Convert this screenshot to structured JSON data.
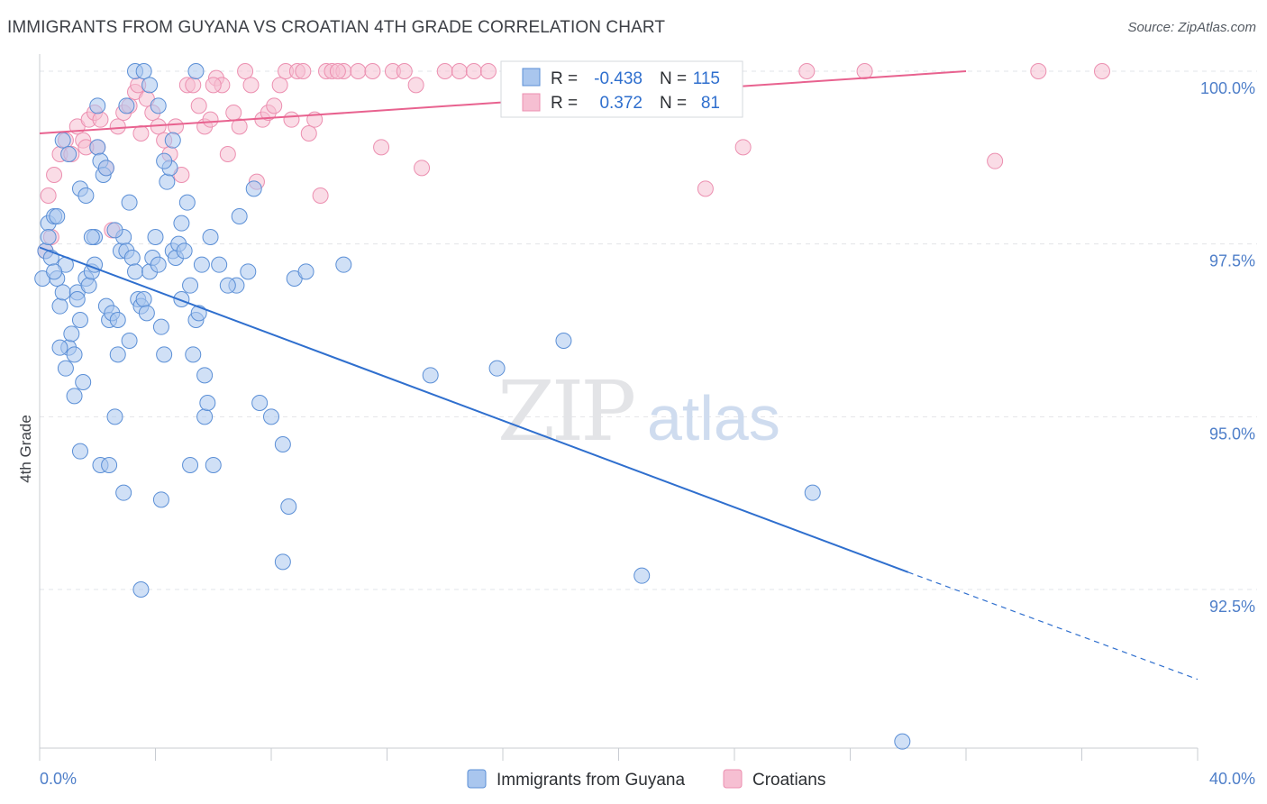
{
  "title": "IMMIGRANTS FROM GUYANA VS CROATIAN 4TH GRADE CORRELATION CHART",
  "source": "Source: ZipAtlas.com",
  "watermark": {
    "zip": "ZIP",
    "atlas": "atlas"
  },
  "colors": {
    "blue_fill": "#a9c6ee",
    "blue_stroke": "#5b8fd6",
    "blue_line": "#2f6fce",
    "pink_fill": "#f6bfd2",
    "pink_stroke": "#ec8fb0",
    "pink_line": "#e8628f",
    "grid": "#e2e4e8",
    "axis": "#c8ccd2",
    "tick_text": "#4f7fc9"
  },
  "legend_box": {
    "rows": [
      {
        "r_label": "R =",
        "r_value": "-0.438",
        "n_label": "N =",
        "n_value": "115"
      },
      {
        "r_label": "R =",
        "r_value": "0.372",
        "n_label": "N =",
        "n_value": "81"
      }
    ]
  },
  "chart_data": {
    "type": "scatter",
    "xlabel": "",
    "ylabel": "4th Grade",
    "xlim": [
      0,
      40
    ],
    "ylim": [
      90.2,
      100.3
    ],
    "x_tick_labels": [
      "0.0%",
      "40.0%"
    ],
    "y_tick_labels": [
      "100.0%",
      "97.5%",
      "95.0%",
      "92.5%"
    ],
    "y_ticks": [
      100.0,
      97.5,
      95.0,
      92.5
    ],
    "grid": true,
    "legend": "bottom-center",
    "series": [
      {
        "name": "Immigrants from Guyana",
        "color": "blue",
        "r": -0.438,
        "n": 115,
        "trend": {
          "x0": 0,
          "y0": 97.45,
          "x1": 30,
          "y1": 92.75,
          "dash_to_x": 40,
          "dash_to_y": 91.2
        },
        "points": [
          [
            0.1,
            97.0
          ],
          [
            0.2,
            97.4
          ],
          [
            0.3,
            97.8
          ],
          [
            0.4,
            97.3
          ],
          [
            0.5,
            97.9
          ],
          [
            0.6,
            97.0
          ],
          [
            0.7,
            96.6
          ],
          [
            0.8,
            96.8
          ],
          [
            0.9,
            97.2
          ],
          [
            1.0,
            96.0
          ],
          [
            1.1,
            96.2
          ],
          [
            1.2,
            95.9
          ],
          [
            1.3,
            96.8
          ],
          [
            1.4,
            96.4
          ],
          [
            1.5,
            95.5
          ],
          [
            1.6,
            97.0
          ],
          [
            1.7,
            96.9
          ],
          [
            1.8,
            97.1
          ],
          [
            1.9,
            97.6
          ],
          [
            2.0,
            98.9
          ],
          [
            2.1,
            98.7
          ],
          [
            2.2,
            98.5
          ],
          [
            2.3,
            96.6
          ],
          [
            2.4,
            96.4
          ],
          [
            2.5,
            96.5
          ],
          [
            2.6,
            95.0
          ],
          [
            2.7,
            95.9
          ],
          [
            2.8,
            97.4
          ],
          [
            2.9,
            97.6
          ],
          [
            3.0,
            97.4
          ],
          [
            3.1,
            98.1
          ],
          [
            3.2,
            97.3
          ],
          [
            3.3,
            97.1
          ],
          [
            3.4,
            96.7
          ],
          [
            3.5,
            96.6
          ],
          [
            3.6,
            96.7
          ],
          [
            3.7,
            96.5
          ],
          [
            3.8,
            97.1
          ],
          [
            3.9,
            97.3
          ],
          [
            4.0,
            97.6
          ],
          [
            4.1,
            97.2
          ],
          [
            4.2,
            96.3
          ],
          [
            4.3,
            95.9
          ],
          [
            4.4,
            98.4
          ],
          [
            4.5,
            98.6
          ],
          [
            4.6,
            97.4
          ],
          [
            4.7,
            97.3
          ],
          [
            4.8,
            97.5
          ],
          [
            4.9,
            97.8
          ],
          [
            5.0,
            97.4
          ],
          [
            5.1,
            98.1
          ],
          [
            5.2,
            96.9
          ],
          [
            5.3,
            95.9
          ],
          [
            5.4,
            96.4
          ],
          [
            5.5,
            96.5
          ],
          [
            5.6,
            97.2
          ],
          [
            5.7,
            95.0
          ],
          [
            5.8,
            95.2
          ],
          [
            0.6,
            97.9
          ],
          [
            0.8,
            99.0
          ],
          [
            1.0,
            98.8
          ],
          [
            1.4,
            98.3
          ],
          [
            1.6,
            98.2
          ],
          [
            1.8,
            97.6
          ],
          [
            2.0,
            99.5
          ],
          [
            2.3,
            98.6
          ],
          [
            2.6,
            97.7
          ],
          [
            3.0,
            99.5
          ],
          [
            3.3,
            100.0
          ],
          [
            3.6,
            100.0
          ],
          [
            3.8,
            99.8
          ],
          [
            4.1,
            99.5
          ],
          [
            4.3,
            98.7
          ],
          [
            4.6,
            99.0
          ],
          [
            5.4,
            100.0
          ],
          [
            0.7,
            96.0
          ],
          [
            0.9,
            95.7
          ],
          [
            1.2,
            95.3
          ],
          [
            1.4,
            94.5
          ],
          [
            2.1,
            94.3
          ],
          [
            2.4,
            94.3
          ],
          [
            2.9,
            93.9
          ],
          [
            3.5,
            92.5
          ],
          [
            4.2,
            93.8
          ],
          [
            5.2,
            94.3
          ],
          [
            5.7,
            95.6
          ],
          [
            6.0,
            94.3
          ],
          [
            6.8,
            96.9
          ],
          [
            7.2,
            97.1
          ],
          [
            7.6,
            95.2
          ],
          [
            8.0,
            95.0
          ],
          [
            8.4,
            94.6
          ],
          [
            8.6,
            93.7
          ],
          [
            8.4,
            92.9
          ],
          [
            8.8,
            97.0
          ],
          [
            9.2,
            97.1
          ],
          [
            10.5,
            97.2
          ],
          [
            13.5,
            95.6
          ],
          [
            15.8,
            95.7
          ],
          [
            18.1,
            96.1
          ],
          [
            26.7,
            93.9
          ],
          [
            20.8,
            92.7
          ],
          [
            29.8,
            90.3
          ],
          [
            6.2,
            97.2
          ],
          [
            6.9,
            97.9
          ],
          [
            7.4,
            98.3
          ],
          [
            6.5,
            96.9
          ],
          [
            5.9,
            97.6
          ],
          [
            4.9,
            96.7
          ],
          [
            1.3,
            96.7
          ],
          [
            0.5,
            97.1
          ],
          [
            0.3,
            97.6
          ],
          [
            1.9,
            97.2
          ],
          [
            2.7,
            96.4
          ],
          [
            3.1,
            96.1
          ]
        ]
      },
      {
        "name": "Croatians",
        "color": "pink",
        "r": 0.372,
        "n": 81,
        "trend": {
          "x0": 0,
          "y0": 99.1,
          "x1": 32,
          "y1": 100.0
        },
        "points": [
          [
            0.3,
            98.2
          ],
          [
            0.5,
            98.5
          ],
          [
            0.7,
            98.8
          ],
          [
            0.9,
            99.0
          ],
          [
            1.1,
            98.8
          ],
          [
            1.3,
            99.2
          ],
          [
            1.5,
            99.0
          ],
          [
            1.7,
            99.3
          ],
          [
            1.9,
            99.4
          ],
          [
            2.1,
            99.3
          ],
          [
            2.3,
            98.6
          ],
          [
            2.5,
            97.7
          ],
          [
            2.7,
            99.2
          ],
          [
            2.9,
            99.4
          ],
          [
            3.1,
            99.5
          ],
          [
            3.3,
            99.7
          ],
          [
            3.5,
            99.1
          ],
          [
            3.7,
            99.6
          ],
          [
            3.9,
            99.4
          ],
          [
            4.1,
            99.2
          ],
          [
            4.3,
            99.0
          ],
          [
            4.5,
            98.8
          ],
          [
            4.7,
            99.2
          ],
          [
            4.9,
            98.5
          ],
          [
            5.1,
            99.8
          ],
          [
            5.3,
            99.8
          ],
          [
            5.5,
            99.5
          ],
          [
            5.7,
            99.2
          ],
          [
            5.9,
            99.3
          ],
          [
            6.1,
            99.9
          ],
          [
            6.3,
            99.8
          ],
          [
            6.5,
            98.8
          ],
          [
            6.7,
            99.4
          ],
          [
            6.9,
            99.2
          ],
          [
            7.1,
            100.0
          ],
          [
            7.3,
            99.8
          ],
          [
            7.5,
            98.4
          ],
          [
            7.7,
            99.3
          ],
          [
            7.9,
            99.4
          ],
          [
            8.1,
            99.5
          ],
          [
            8.3,
            99.8
          ],
          [
            8.5,
            100.0
          ],
          [
            8.7,
            99.3
          ],
          [
            8.9,
            100.0
          ],
          [
            9.1,
            100.0
          ],
          [
            9.3,
            99.1
          ],
          [
            9.5,
            99.3
          ],
          [
            9.7,
            98.2
          ],
          [
            9.9,
            100.0
          ],
          [
            10.1,
            100.0
          ],
          [
            10.5,
            100.0
          ],
          [
            11.0,
            100.0
          ],
          [
            11.5,
            100.0
          ],
          [
            11.8,
            98.9
          ],
          [
            12.2,
            100.0
          ],
          [
            12.6,
            100.0
          ],
          [
            13.0,
            99.8
          ],
          [
            13.2,
            98.6
          ],
          [
            14.0,
            100.0
          ],
          [
            14.5,
            100.0
          ],
          [
            15.0,
            100.0
          ],
          [
            15.5,
            100.0
          ],
          [
            16.5,
            100.0
          ],
          [
            17.5,
            100.0
          ],
          [
            18.5,
            100.0
          ],
          [
            20.5,
            100.0
          ],
          [
            22.5,
            100.0
          ],
          [
            23.0,
            98.3
          ],
          [
            24.3,
            98.9
          ],
          [
            26.5,
            100.0
          ],
          [
            28.5,
            100.0
          ],
          [
            33.0,
            98.7
          ],
          [
            34.5,
            100.0
          ],
          [
            36.7,
            100.0
          ],
          [
            0.4,
            97.6
          ],
          [
            0.2,
            97.4
          ],
          [
            2.0,
            98.9
          ],
          [
            3.4,
            99.8
          ],
          [
            6.0,
            99.8
          ],
          [
            1.6,
            98.9
          ],
          [
            10.3,
            100.0
          ]
        ]
      }
    ]
  },
  "bottom_legend": [
    {
      "label": "Immigrants from Guyana",
      "color": "blue"
    },
    {
      "label": "Croatians",
      "color": "pink"
    }
  ]
}
